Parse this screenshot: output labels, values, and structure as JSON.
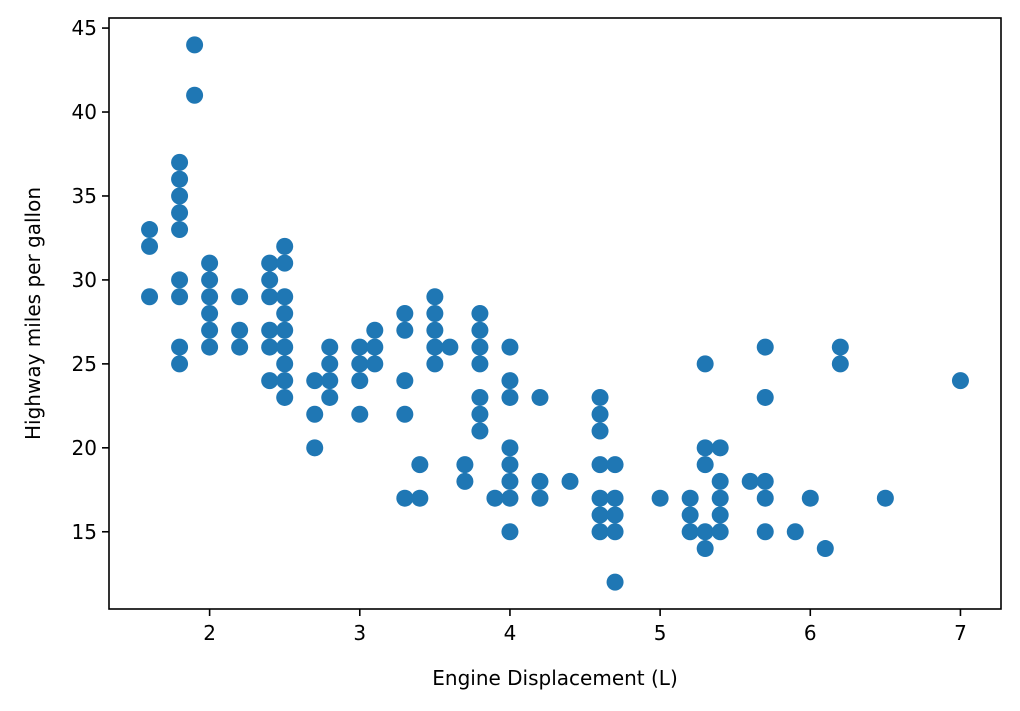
{
  "chart_data": {
    "type": "scatter",
    "title": "",
    "xlabel": "Engine Displacement (L)",
    "ylabel": "Highway miles per gallon",
    "xlim": [
      1.33,
      7.27
    ],
    "ylim": [
      10.4,
      45.6
    ],
    "x_ticks": [
      2,
      3,
      4,
      5,
      6,
      7
    ],
    "y_ticks": [
      15,
      20,
      25,
      30,
      35,
      40,
      45
    ],
    "grid": false,
    "legend": "none",
    "marker_color": "#1f77b4",
    "series": [
      {
        "points": [
          [
            1.6,
            33
          ],
          [
            1.6,
            32
          ],
          [
            1.6,
            29
          ],
          [
            1.8,
            37
          ],
          [
            1.8,
            36
          ],
          [
            1.8,
            35
          ],
          [
            1.8,
            34
          ],
          [
            1.8,
            33
          ],
          [
            1.8,
            30
          ],
          [
            1.8,
            29
          ],
          [
            1.8,
            26
          ],
          [
            1.8,
            25
          ],
          [
            1.9,
            44
          ],
          [
            1.9,
            41
          ],
          [
            2.0,
            31
          ],
          [
            2.0,
            30
          ],
          [
            2.0,
            29
          ],
          [
            2.0,
            28
          ],
          [
            2.0,
            27
          ],
          [
            2.0,
            26
          ],
          [
            2.2,
            29
          ],
          [
            2.2,
            27
          ],
          [
            2.2,
            26
          ],
          [
            2.4,
            31
          ],
          [
            2.4,
            30
          ],
          [
            2.4,
            29
          ],
          [
            2.4,
            27
          ],
          [
            2.4,
            26
          ],
          [
            2.4,
            24
          ],
          [
            2.5,
            32
          ],
          [
            2.5,
            31
          ],
          [
            2.5,
            29
          ],
          [
            2.5,
            28
          ],
          [
            2.5,
            27
          ],
          [
            2.5,
            26
          ],
          [
            2.5,
            25
          ],
          [
            2.5,
            24
          ],
          [
            2.5,
            23
          ],
          [
            2.7,
            24
          ],
          [
            2.7,
            22
          ],
          [
            2.7,
            20
          ],
          [
            2.8,
            26
          ],
          [
            2.8,
            25
          ],
          [
            2.8,
            24
          ],
          [
            2.8,
            23
          ],
          [
            3.0,
            26
          ],
          [
            3.0,
            25
          ],
          [
            3.0,
            24
          ],
          [
            3.0,
            22
          ],
          [
            3.1,
            27
          ],
          [
            3.1,
            26
          ],
          [
            3.1,
            25
          ],
          [
            3.3,
            28
          ],
          [
            3.3,
            27
          ],
          [
            3.3,
            24
          ],
          [
            3.3,
            22
          ],
          [
            3.3,
            17
          ],
          [
            3.4,
            19
          ],
          [
            3.4,
            17
          ],
          [
            3.5,
            29
          ],
          [
            3.5,
            28
          ],
          [
            3.5,
            27
          ],
          [
            3.5,
            26
          ],
          [
            3.5,
            25
          ],
          [
            3.6,
            26
          ],
          [
            3.7,
            19
          ],
          [
            3.7,
            18
          ],
          [
            3.8,
            28
          ],
          [
            3.8,
            27
          ],
          [
            3.8,
            26
          ],
          [
            3.8,
            25
          ],
          [
            3.8,
            23
          ],
          [
            3.8,
            22
          ],
          [
            3.8,
            21
          ],
          [
            3.9,
            17
          ],
          [
            4.0,
            26
          ],
          [
            4.0,
            24
          ],
          [
            4.0,
            23
          ],
          [
            4.0,
            20
          ],
          [
            4.0,
            19
          ],
          [
            4.0,
            18
          ],
          [
            4.0,
            17
          ],
          [
            4.0,
            15
          ],
          [
            4.2,
            23
          ],
          [
            4.2,
            18
          ],
          [
            4.2,
            17
          ],
          [
            4.4,
            18
          ],
          [
            4.6,
            23
          ],
          [
            4.6,
            22
          ],
          [
            4.6,
            21
          ],
          [
            4.6,
            19
          ],
          [
            4.6,
            17
          ],
          [
            4.6,
            16
          ],
          [
            4.6,
            15
          ],
          [
            4.7,
            19
          ],
          [
            4.7,
            17
          ],
          [
            4.7,
            16
          ],
          [
            4.7,
            15
          ],
          [
            4.7,
            12
          ],
          [
            5.0,
            17
          ],
          [
            5.2,
            17
          ],
          [
            5.2,
            16
          ],
          [
            5.2,
            15
          ],
          [
            5.3,
            25
          ],
          [
            5.3,
            20
          ],
          [
            5.3,
            19
          ],
          [
            5.3,
            15
          ],
          [
            5.3,
            14
          ],
          [
            5.4,
            20
          ],
          [
            5.4,
            18
          ],
          [
            5.4,
            17
          ],
          [
            5.4,
            16
          ],
          [
            5.4,
            15
          ],
          [
            5.6,
            18
          ],
          [
            5.7,
            26
          ],
          [
            5.7,
            23
          ],
          [
            5.7,
            18
          ],
          [
            5.7,
            17
          ],
          [
            5.7,
            15
          ],
          [
            5.9,
            15
          ],
          [
            6.0,
            17
          ],
          [
            6.1,
            14
          ],
          [
            6.2,
            26
          ],
          [
            6.2,
            25
          ],
          [
            6.5,
            17
          ],
          [
            7.0,
            24
          ]
        ]
      }
    ]
  }
}
